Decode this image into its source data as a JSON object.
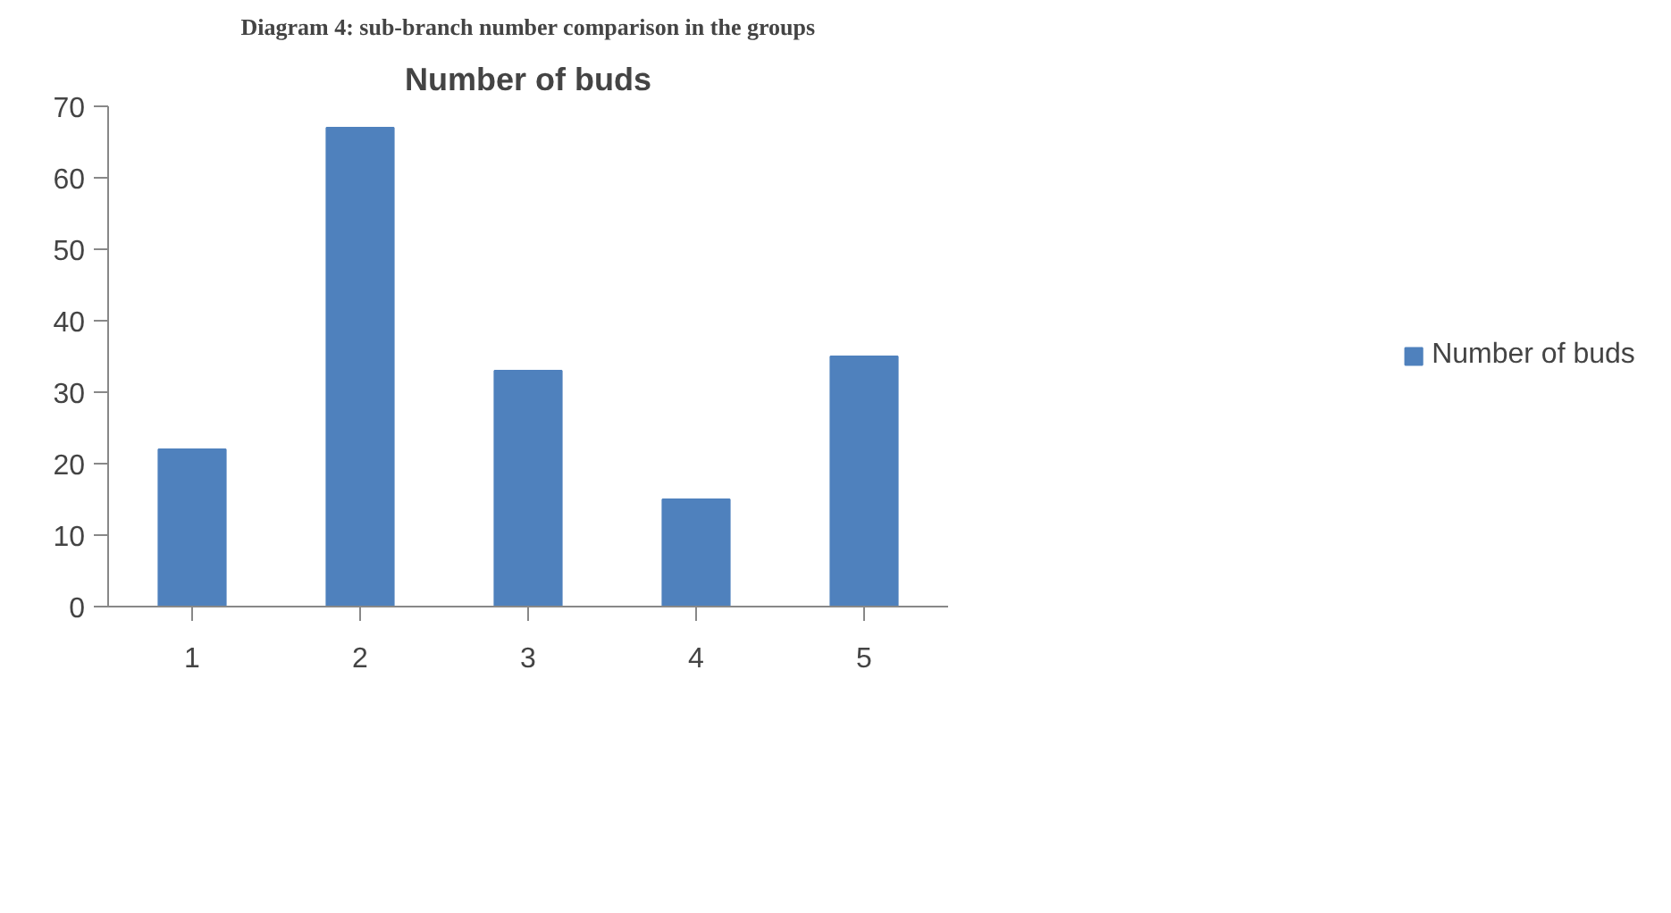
{
  "chart_data": {
    "type": "bar",
    "title": "Number of buds",
    "annotations": [
      "Diagram 4: sub-branch number comparison in the groups"
    ],
    "categories": [
      "1",
      "2",
      "3",
      "4",
      "5"
    ],
    "series": [
      {
        "name": "Number of buds",
        "color": "#4f81bd",
        "values": [
          22,
          67,
          33,
          15,
          35
        ]
      }
    ],
    "ylim": [
      0,
      70
    ],
    "yticks": [
      0,
      10,
      20,
      30,
      40,
      50,
      60,
      70
    ],
    "grid": false,
    "legend": "right"
  }
}
